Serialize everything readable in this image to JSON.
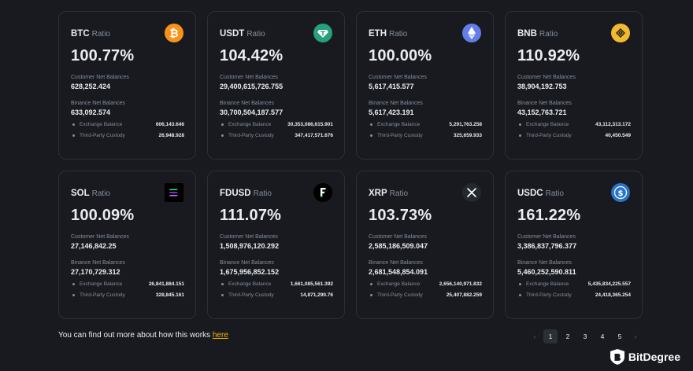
{
  "labels": {
    "ratio_word": "Ratio",
    "customer_net": "Customer Net Balances",
    "binance_net": "Binance Net Balances",
    "exchange": "Exchange Balance",
    "third_party": "Third-Party Custody"
  },
  "cards": [
    {
      "asset": "BTC",
      "ratio": "100.77%",
      "customer_net": "628,252.424",
      "binance_net": "633,092.574",
      "exchange": "606,143.646",
      "third_party": "26,948.928",
      "icon": "btc-icon"
    },
    {
      "asset": "USDT",
      "ratio": "104.42%",
      "customer_net": "29,400,615,726.755",
      "binance_net": "30,700,504,187.577",
      "exchange": "30,353,086,615.901",
      "third_party": "347,417,571.676",
      "icon": "usdt-icon"
    },
    {
      "asset": "ETH",
      "ratio": "100.00%",
      "customer_net": "5,617,415.577",
      "binance_net": "5,617,423.191",
      "exchange": "5,291,763.258",
      "third_party": "325,659.933",
      "icon": "eth-icon"
    },
    {
      "asset": "BNB",
      "ratio": "110.92%",
      "customer_net": "38,904,192.753",
      "binance_net": "43,152,763.721",
      "exchange": "43,112,313.172",
      "third_party": "40,450.549",
      "icon": "bnb-icon"
    },
    {
      "asset": "SOL",
      "ratio": "100.09%",
      "customer_net": "27,146,842.25",
      "binance_net": "27,170,729.312",
      "exchange": "26,841,884.151",
      "third_party": "328,845.161",
      "icon": "sol-icon"
    },
    {
      "asset": "FDUSD",
      "ratio": "111.07%",
      "customer_net": "1,508,976,120.292",
      "binance_net": "1,675,956,852.152",
      "exchange": "1,661,085,561.392",
      "third_party": "14,871,290.76",
      "icon": "fdusd-icon"
    },
    {
      "asset": "XRP",
      "ratio": "103.73%",
      "customer_net": "2,585,186,509.047",
      "binance_net": "2,681,548,854.091",
      "exchange": "2,656,140,971.832",
      "third_party": "25,407,882.259",
      "icon": "xrp-icon"
    },
    {
      "asset": "USDC",
      "ratio": "161.22%",
      "customer_net": "3,386,837,796.377",
      "binance_net": "5,460,252,590.811",
      "exchange": "5,435,834,225.557",
      "third_party": "24,418,365.254",
      "icon": "usdc-icon"
    }
  ],
  "footer": {
    "text": "You can find out more about how this works",
    "link": "here"
  },
  "pagination": {
    "prev": "‹",
    "pages": [
      "1",
      "2",
      "3",
      "4",
      "5"
    ],
    "next": "›",
    "current": "1"
  },
  "brand": {
    "name": "BitDegree"
  },
  "colors": {
    "background": "#181a20",
    "border": "#2b2f36",
    "accent": "#f0b90b",
    "muted": "#848e9c"
  }
}
